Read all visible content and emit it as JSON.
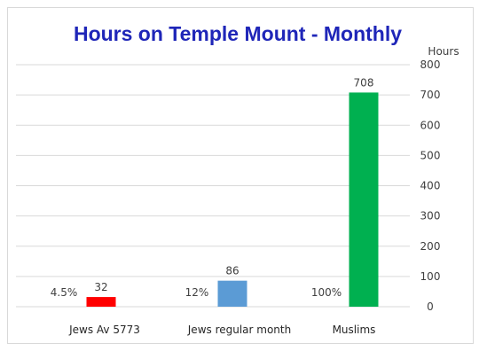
{
  "chart_data": {
    "type": "bar",
    "title": "Hours on Temple Mount - Monthly",
    "ylabel": "Hours",
    "xlabel": "",
    "ylim": [
      0,
      800
    ],
    "yticks": [
      0,
      100,
      200,
      300,
      400,
      500,
      600,
      700,
      800
    ],
    "y_axis_position": "right",
    "grid": true,
    "legend": "none",
    "categories": [
      "Jews Av 5773",
      "Jews regular month",
      "Muslims"
    ],
    "values": [
      32,
      86,
      708
    ],
    "percent_labels": [
      "4.5%",
      "12%",
      "100%"
    ],
    "bar_colors": [
      "#ff0000",
      "#5b9bd5",
      "#00b050"
    ],
    "title_color": "#1f26b8",
    "grid_color": "#d9d9d9"
  }
}
